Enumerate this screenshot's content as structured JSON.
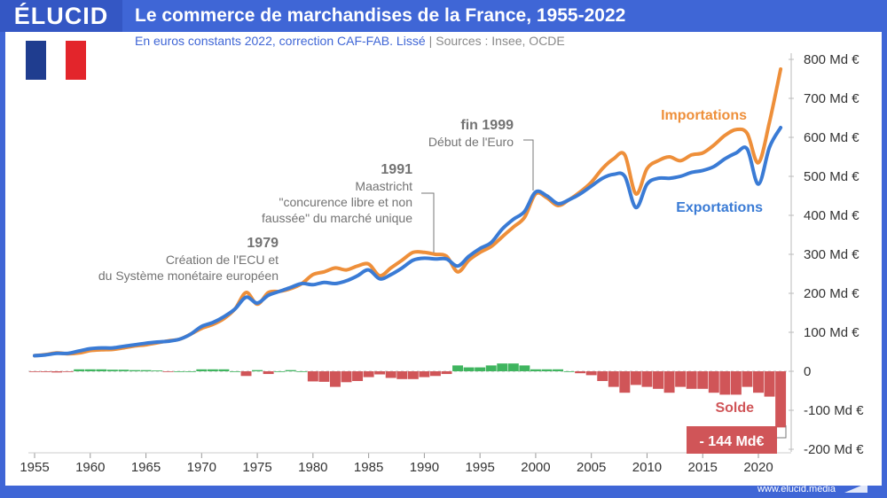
{
  "brand": {
    "logo": "ÉLUCID",
    "url": "www.elucid.media"
  },
  "header": {
    "title": "Le commerce de marchandises de la France, 1955-2022",
    "subtitle": "En euros constants 2022, correction CAF-FAB. Lissé",
    "sources": "Sources : Insee, OCDE"
  },
  "colors": {
    "importations": "#ee8f3a",
    "exportations": "#3a7bd5",
    "deficit": "#d05558",
    "surplus": "#3fb55f",
    "annotation": "#737373"
  },
  "annotations": [
    {
      "year_label": "fin 1999",
      "text": [
        "Début de l'Euro"
      ]
    },
    {
      "year_label": "1991",
      "text": [
        "Maastricht",
        "\"concurence libre et non",
        "faussée\" du marché unique"
      ]
    },
    {
      "year_label": "1979",
      "text": [
        "Création de l'ECU et",
        "du Système monétaire européen"
      ]
    }
  ],
  "chart_data": {
    "type": "line",
    "title": "Le commerce de marchandises de la France, 1955-2022",
    "x": [
      1955,
      1956,
      1957,
      1958,
      1959,
      1960,
      1961,
      1962,
      1963,
      1964,
      1965,
      1966,
      1967,
      1968,
      1969,
      1970,
      1971,
      1972,
      1973,
      1974,
      1975,
      1976,
      1977,
      1978,
      1979,
      1980,
      1981,
      1982,
      1983,
      1984,
      1985,
      1986,
      1987,
      1988,
      1989,
      1990,
      1991,
      1992,
      1993,
      1994,
      1995,
      1996,
      1997,
      1998,
      1999,
      2000,
      2001,
      2002,
      2003,
      2004,
      2005,
      2006,
      2007,
      2008,
      2009,
      2010,
      2011,
      2012,
      2013,
      2014,
      2015,
      2016,
      2017,
      2018,
      2019,
      2020,
      2021,
      2022
    ],
    "xticks": [
      "1955",
      "1960",
      "1965",
      "1970",
      "1975",
      "1980",
      "1985",
      "1990",
      "1995",
      "2000",
      "2005",
      "2010",
      "2015",
      "2020"
    ],
    "yticks": [
      "800 Md €",
      "700 Md €",
      "600 Md €",
      "500 Md €",
      "400 Md €",
      "300 Md €",
      "200 Md €",
      "100 Md €",
      "0",
      "-100 Md €",
      "-200 Md €"
    ],
    "ylim": [
      -200,
      800
    ],
    "series": [
      {
        "name": "Importations",
        "values": [
          40,
          43,
          47,
          45,
          47,
          53,
          55,
          56,
          60,
          65,
          68,
          73,
          78,
          82,
          95,
          110,
          120,
          135,
          160,
          202,
          172,
          202,
          205,
          212,
          225,
          248,
          255,
          265,
          260,
          270,
          275,
          245,
          265,
          285,
          305,
          305,
          300,
          295,
          255,
          285,
          305,
          320,
          345,
          370,
          395,
          455,
          445,
          425,
          440,
          460,
          485,
          520,
          545,
          555,
          455,
          520,
          540,
          550,
          540,
          555,
          560,
          580,
          605,
          620,
          610,
          535,
          640,
          775
        ]
      },
      {
        "name": "Exportations",
        "values": [
          40,
          42,
          46,
          46,
          52,
          58,
          60,
          60,
          64,
          68,
          72,
          75,
          77,
          82,
          95,
          115,
          125,
          140,
          160,
          190,
          175,
          195,
          205,
          215,
          225,
          222,
          228,
          225,
          232,
          245,
          260,
          237,
          248,
          265,
          285,
          290,
          288,
          288,
          270,
          295,
          315,
          330,
          365,
          390,
          410,
          460,
          450,
          430,
          440,
          455,
          475,
          495,
          505,
          500,
          420,
          480,
          495,
          495,
          500,
          510,
          515,
          525,
          545,
          560,
          570,
          480,
          575,
          625
        ]
      },
      {
        "name": "Solde",
        "values": [
          -1,
          -2,
          -3,
          -1,
          5,
          5,
          5,
          4,
          4,
          3,
          3,
          2,
          -1,
          0,
          0,
          5,
          5,
          5,
          0,
          -12,
          3,
          -7,
          0,
          3,
          0,
          -26,
          -27,
          -40,
          -28,
          -25,
          -15,
          -8,
          -17,
          -20,
          -20,
          -15,
          -12,
          -7,
          15,
          10,
          10,
          15,
          20,
          20,
          15,
          5,
          5,
          5,
          0,
          -5,
          -10,
          -25,
          -40,
          -55,
          -35,
          -40,
          -45,
          -55,
          -40,
          -45,
          -45,
          -55,
          -60,
          -60,
          -40,
          -55,
          -65,
          -144
        ]
      }
    ],
    "series_labels": {
      "importations": "Importations",
      "exportations": "Exportations",
      "solde": "Solde"
    },
    "callout": "- 144 Md€",
    "grid": false
  }
}
